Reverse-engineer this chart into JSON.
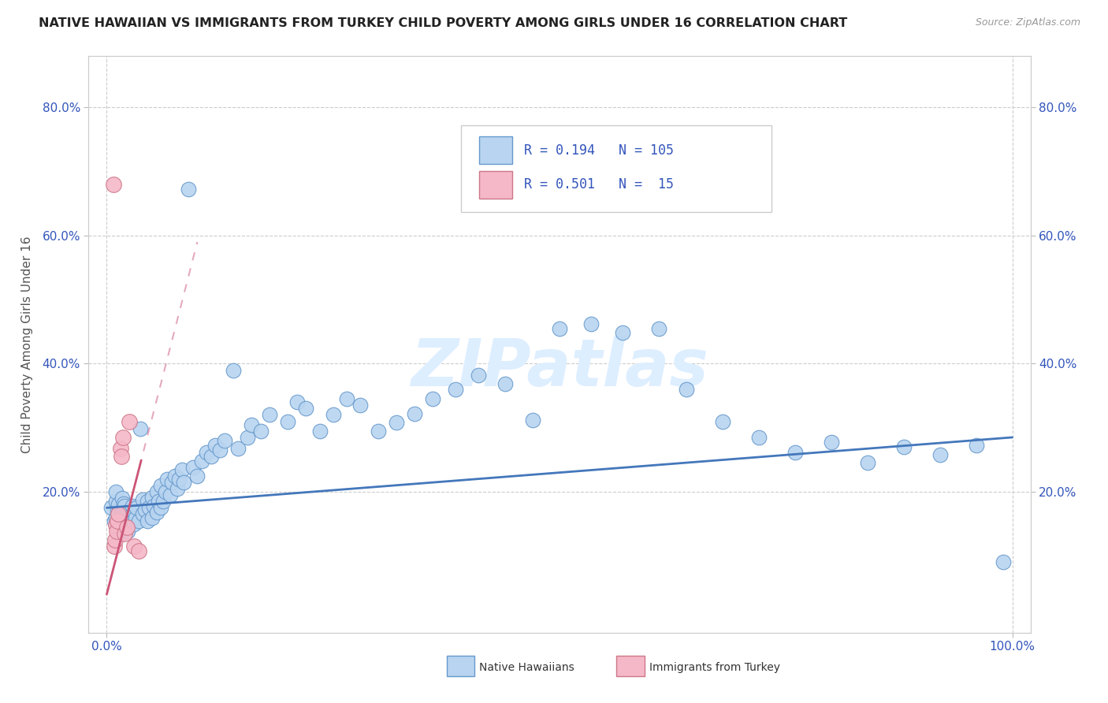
{
  "title": "NATIVE HAWAIIAN VS IMMIGRANTS FROM TURKEY CHILD POVERTY AMONG GIRLS UNDER 16 CORRELATION CHART",
  "source": "Source: ZipAtlas.com",
  "ylabel": "Child Poverty Among Girls Under 16",
  "r_nh": 0.194,
  "n_nh": 105,
  "r_tk": 0.501,
  "n_tk": 15,
  "color_nh": "#b8d4f0",
  "color_tk": "#f5b8c8",
  "edge_nh": "#6699cc",
  "edge_tk": "#cc7788",
  "line_color_nh": "#4477bb",
  "line_color_tk": "#cc5577",
  "watermark_color": "#ddeeff",
  "title_color": "#222222",
  "axis_label_color": "#3355bb",
  "ylabel_color": "#555555",
  "nh_line_intercept": 0.175,
  "nh_line_slope": 0.11,
  "tk_line_intercept": 0.04,
  "tk_line_slope": 5.5
}
